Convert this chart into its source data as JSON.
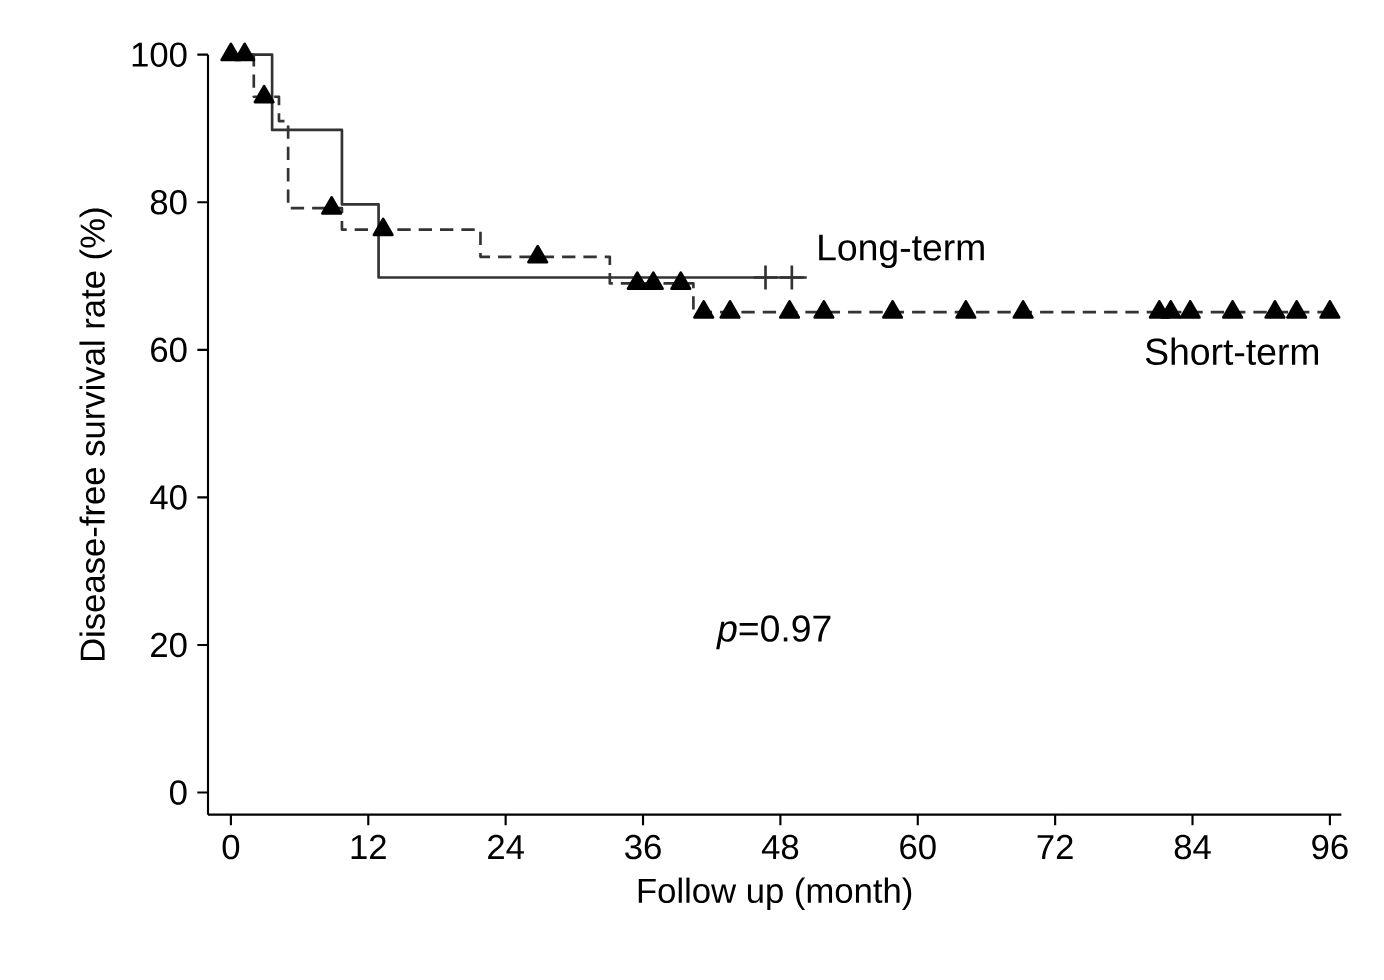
{
  "chart_data": {
    "type": "step",
    "xlabel": "Follow up (month)",
    "ylabel": "Disease-free survival rate (%)",
    "xlim": [
      -2,
      97
    ],
    "ylim": [
      -3,
      100
    ],
    "xticks": [
      0,
      12,
      24,
      36,
      48,
      60,
      72,
      84,
      96
    ],
    "yticks": [
      0,
      20,
      40,
      60,
      80,
      100
    ],
    "grid": false,
    "annotations": [
      "*p*=0.97"
    ],
    "series": [
      {
        "name": "Long-term",
        "color": "#333333",
        "line_style": "solid",
        "marker": "none",
        "x": [
          0,
          3.6,
          9.7,
          12.9,
          50.3
        ],
        "values": [
          100,
          89.8,
          79.7,
          69.8,
          69.8
        ]
      },
      {
        "name": "Short-term",
        "color": "#333333",
        "line_style": "dashed",
        "marker": "none",
        "x": [
          0,
          2,
          4.2,
          5,
          9.7,
          21.8,
          33.1,
          40.4,
          96
        ],
        "values": [
          100,
          94.3,
          91,
          79.2,
          76.3,
          72.6,
          69,
          65.1,
          65.1
        ]
      },
      {
        "type": "scatter",
        "color": "#000000",
        "marker": "triangle",
        "x": [
          0,
          1.2,
          2.9,
          8.8,
          13.3,
          26.8,
          35.5,
          36.9,
          39.3,
          41.3,
          43.6,
          48.8,
          51.8,
          57.8,
          64.2,
          69.2,
          81.1,
          82.1,
          83.8,
          87.5,
          91.2,
          93.1,
          96
        ],
        "values": [
          100,
          100,
          94.3,
          79.2,
          76.3,
          72.6,
          69,
          69,
          69,
          65.1,
          65.1,
          65.1,
          65.1,
          65.1,
          65.1,
          65.1,
          65.1,
          65.1,
          65.1,
          65.1,
          65.1,
          65.1,
          65.1
        ]
      },
      {
        "type": "scatter",
        "color": "#333333",
        "marker": "cross",
        "x": [
          46.7,
          49
        ],
        "values": [
          69.8,
          69.8
        ]
      }
    ]
  }
}
